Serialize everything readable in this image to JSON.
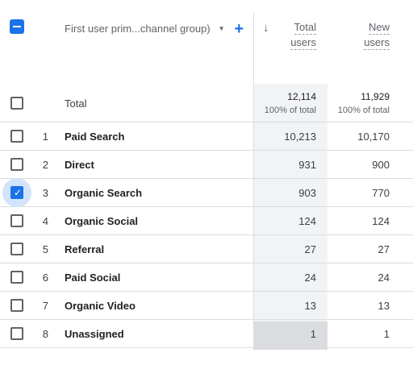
{
  "header": {
    "dimension_label": "First user prim...channel group)",
    "dropdown_icon": "caret-down-icon",
    "add_icon": "+",
    "sort_icon": "↓",
    "col_total_users_l1": "Total",
    "col_total_users_l2": "users",
    "col_new_users_l1": "New",
    "col_new_users_l2": "users"
  },
  "totals": {
    "label": "Total",
    "total_users": "12,114",
    "total_users_pct": "100% of total",
    "new_users": "11,929",
    "new_users_pct": "100% of total"
  },
  "rows": [
    {
      "index": "1",
      "name": "Paid Search",
      "total_users": "10,213",
      "new_users": "10,170",
      "checked": false
    },
    {
      "index": "2",
      "name": "Direct",
      "total_users": "931",
      "new_users": "900",
      "checked": false
    },
    {
      "index": "3",
      "name": "Organic Search",
      "total_users": "903",
      "new_users": "770",
      "checked": true
    },
    {
      "index": "4",
      "name": "Organic Social",
      "total_users": "124",
      "new_users": "124",
      "checked": false
    },
    {
      "index": "5",
      "name": "Referral",
      "total_users": "27",
      "new_users": "27",
      "checked": false
    },
    {
      "index": "6",
      "name": "Paid Social",
      "total_users": "24",
      "new_users": "24",
      "checked": false
    },
    {
      "index": "7",
      "name": "Organic Video",
      "total_users": "13",
      "new_users": "13",
      "checked": false
    },
    {
      "index": "8",
      "name": "Unassigned",
      "total_users": "1",
      "new_users": "1",
      "checked": false
    }
  ],
  "colors": {
    "accent": "#1a73e8",
    "sorted_column_bg": "#f1f3f4",
    "check_halo": "#d2e3fc"
  }
}
